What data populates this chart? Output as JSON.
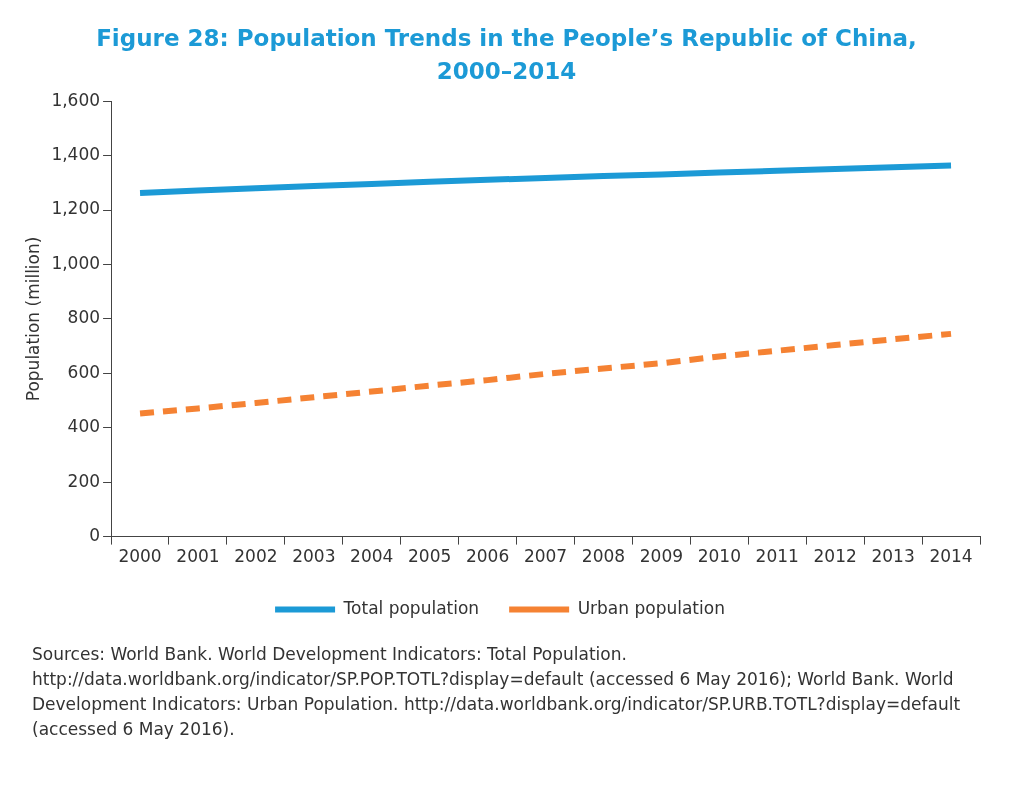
{
  "chart_data": {
    "type": "line",
    "title": "Figure 28: Population Trends in the People’s Republic of China, 2000–2014",
    "ylabel": "Population (million)",
    "categories": [
      "2000",
      "2001",
      "2002",
      "2003",
      "2004",
      "2005",
      "2006",
      "2007",
      "2008",
      "2009",
      "2010",
      "2011",
      "2012",
      "2013",
      "2014"
    ],
    "series": [
      {
        "name": "Total population",
        "color": "#1c9ad6",
        "line_style": "solid",
        "values": [
          1263,
          1272,
          1280,
          1288,
          1296,
          1304,
          1311,
          1318,
          1325,
          1331,
          1338,
          1344,
          1351,
          1357,
          1364
        ]
      },
      {
        "name": "Urban population",
        "color": "#f58233",
        "line_style": "dashed",
        "values": [
          452,
          471,
          491,
          512,
          533,
          555,
          575,
          598,
          618,
          637,
          662,
          683,
          704,
          725,
          745
        ]
      }
    ],
    "ylim": [
      0,
      1600
    ],
    "yticks": [
      0,
      200,
      400,
      600,
      800,
      {
        "value": 1000,
        "label": "1,000"
      },
      {
        "value": 1200,
        "label": "1,200"
      },
      {
        "value": 1400,
        "label": "1,400"
      },
      {
        "value": 1600,
        "label": "1,600"
      }
    ],
    "grid": false,
    "legend": "bottom",
    "marker": "none",
    "annotations": [
      "Sources: World Bank. World Development Indicators: Total Population. http://data.worldbank.org/indicator/SP.POP.TOTL?display=default (accessed 6 May 2016); World Bank. World Development Indicators: Urban Population. http://data.worldbank.org/indicator/SP.URB.TOTL?display=default (accessed 6 May 2016)."
    ]
  }
}
